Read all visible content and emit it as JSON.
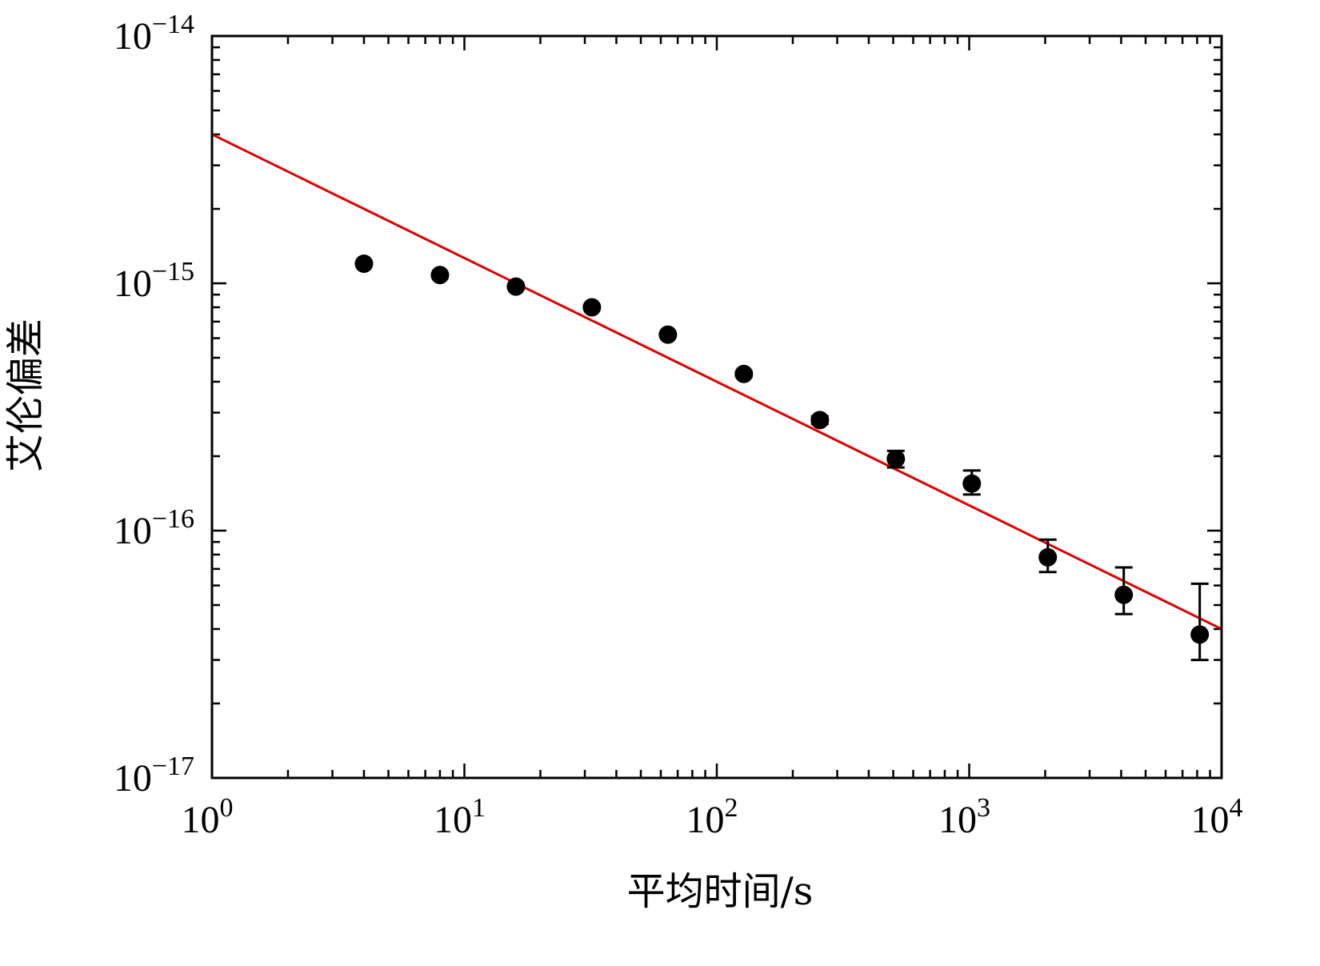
{
  "chart_data": {
    "type": "scatter",
    "xlabel": "平均时间/s",
    "ylabel": "艾伦偏差",
    "x_scale": "log",
    "y_scale": "log",
    "xlim": [
      1,
      10000
    ],
    "ylim": [
      1e-17,
      1e-14
    ],
    "grid": false,
    "x_ticks": [
      {
        "base": "10",
        "exp": "0"
      },
      {
        "base": "10",
        "exp": "1"
      },
      {
        "base": "10",
        "exp": "2"
      },
      {
        "base": "10",
        "exp": "3"
      },
      {
        "base": "10",
        "exp": "4"
      }
    ],
    "y_ticks": [
      {
        "base": "10",
        "exp": "−17"
      },
      {
        "base": "10",
        "exp": "−16"
      },
      {
        "base": "10",
        "exp": "−15"
      },
      {
        "base": "10",
        "exp": "−14"
      }
    ],
    "series": [
      {
        "kind": "points_with_error",
        "color": "#000000",
        "points": [
          {
            "x": 4,
            "y": 1.2e-15,
            "lo": 1.2e-15,
            "hi": 1.2e-15
          },
          {
            "x": 8,
            "y": 1.08e-15,
            "lo": 1.08e-15,
            "hi": 1.08e-15
          },
          {
            "x": 16,
            "y": 9.7e-16,
            "lo": 9.7e-16,
            "hi": 9.7e-16
          },
          {
            "x": 32,
            "y": 8e-16,
            "lo": 8e-16,
            "hi": 8e-16
          },
          {
            "x": 64,
            "y": 6.2e-16,
            "lo": 6.2e-16,
            "hi": 6.2e-16
          },
          {
            "x": 128,
            "y": 4.3e-16,
            "lo": 4.2e-16,
            "hi": 4.4e-16
          },
          {
            "x": 256,
            "y": 2.8e-16,
            "lo": 2.7e-16,
            "hi": 2.9e-16
          },
          {
            "x": 512,
            "y": 1.95e-16,
            "lo": 1.8e-16,
            "hi": 2.1e-16
          },
          {
            "x": 1024,
            "y": 1.55e-16,
            "lo": 1.4e-16,
            "hi": 1.75e-16
          },
          {
            "x": 2048,
            "y": 7.8e-17,
            "lo": 6.8e-17,
            "hi": 9.2e-17
          },
          {
            "x": 4096,
            "y": 5.5e-17,
            "lo": 4.6e-17,
            "hi": 7.1e-17
          },
          {
            "x": 8192,
            "y": 3.8e-17,
            "lo": 3e-17,
            "hi": 6.1e-17
          }
        ]
      },
      {
        "kind": "fit_line",
        "color": "#e00000",
        "x": [
          1,
          10000
        ],
        "y": [
          4e-15,
          4e-17
        ]
      }
    ]
  }
}
